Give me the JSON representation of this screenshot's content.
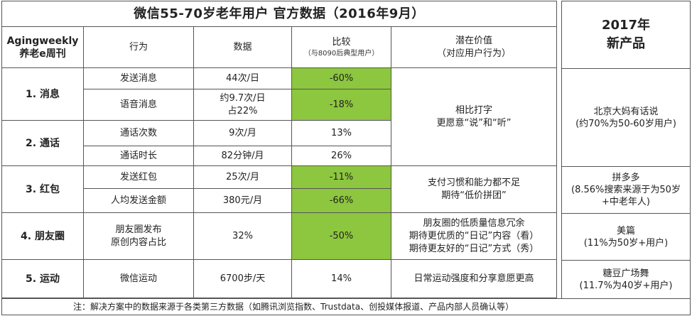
{
  "title": "微信55-70岁老年用户 官方数据（2016年9月）",
  "header": {
    "brand_line1": "Agingweekly",
    "brand_line2": "养老e周刊",
    "behavior": "行为",
    "data": "数据",
    "compare": "比较",
    "compare_sub": "（与8090后典型用户）",
    "value": "潜在价值",
    "value_sub": "（对应用户行为）"
  },
  "categories": {
    "c1": "1. 消息",
    "c2": "2. 通话",
    "c3": "3. 红包",
    "c4": "4. 朋友圈",
    "c5": "5. 运动"
  },
  "rows": [
    {
      "behavior": "发送消息",
      "data": "44次/日",
      "compare": "-60%"
    },
    {
      "behavior": "语音消息",
      "data_l1": "约9.7次/日",
      "data_l2": "占22%",
      "compare": "-18%"
    },
    {
      "behavior": "通话次数",
      "data": "9次/月",
      "compare": "13%"
    },
    {
      "behavior": "通话时长",
      "data": "82分钟/月",
      "compare": "26%"
    },
    {
      "behavior": "发送红包",
      "data": "25次/月",
      "compare": "-11%"
    },
    {
      "behavior": "人均发送金额",
      "data": "380元/月",
      "compare": "-66%"
    },
    {
      "behavior_l1": "朋友圈发布",
      "behavior_l2": "原创内容占比",
      "data": "32%",
      "compare": "-50%"
    },
    {
      "behavior": "微信运动",
      "data": "6700步/天",
      "compare": "14%"
    }
  ],
  "values": {
    "v1_l1": "相比打字",
    "v1_l2": "更愿意“说”和“听”",
    "v2_l1": "支付习惯和能力都不足",
    "v2_l2": "期待“低价拼团”",
    "v3_l1": "朋友圈的低质量信息冗余",
    "v3_l2": "期待更优质的“日记”内容（看）",
    "v3_l3": "期待更友好的“日记”方式（秀）",
    "v4": "日常运动强度和分享意愿更高"
  },
  "side": {
    "head_l1": "2017年",
    "head_l2": "新产品",
    "p1_l1": "北京大妈有话说",
    "p1_l2": "(约70%为50-60岁用户)",
    "p2_l1": "拼多多",
    "p2_l2": "(8.56%搜索来源于为50岁",
    "p2_l3": "+中老年人)",
    "p3_l1": "美篇",
    "p3_l2": "(11%为50岁+用户)",
    "p4_l1": "糖豆广场舞",
    "p4_l2": "(11.7%为40岁+用户)"
  },
  "footer": "注：解决方案中的数据来源于各类第三方数据（如腾讯浏览指数、Trustdata、创投媒体报道、产品内部人员确认等）",
  "colors": {
    "highlight": "#8dc63f"
  }
}
